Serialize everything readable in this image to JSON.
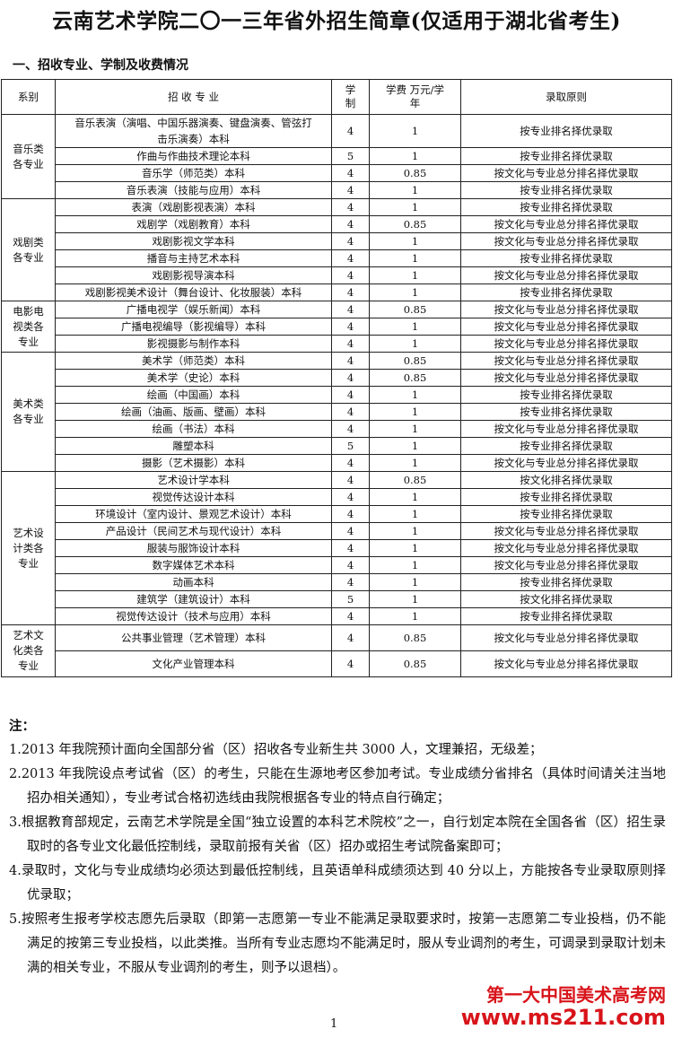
{
  "title": "云南艺术学院二〇一三年省外招生简章(仅适用于湖北省考生)",
  "section": "一、招收专业、学制及收费情况",
  "table": {
    "headers": [
      "系别",
      "招 收 专 业",
      "学制",
      "学费 万元/学年",
      "录取原则"
    ],
    "groups": [
      {
        "dept": "音乐类各专业",
        "rows": [
          [
            "音乐表演（演唱、中国乐器演奏、键盘演奏、管弦打击乐演奏）本科",
            "4",
            "1",
            "按专业排名择优录取"
          ],
          [
            "作曲与作曲技术理论本科",
            "5",
            "1",
            "按专业排名择优录取"
          ],
          [
            "音乐学（师范类）本科",
            "4",
            "0.85",
            "按文化与专业总分排名择优录取"
          ],
          [
            "音乐表演（技能与应用）本科",
            "4",
            "1",
            "按专业排名择优录取"
          ]
        ]
      },
      {
        "dept": "戏剧类各专业",
        "rows": [
          [
            "表演（戏剧影视表演）本科",
            "4",
            "1",
            "按专业排名择优录取"
          ],
          [
            "戏剧学（戏剧教育）本科",
            "4",
            "0.85",
            "按文化与专业总分排名择优录取"
          ],
          [
            "戏剧影视文学本科",
            "4",
            "1",
            "按文化与专业总分排名择优录取"
          ],
          [
            "播音与主持艺术本科",
            "4",
            "1",
            "按专业排名择优录取"
          ],
          [
            "戏剧影视导演本科",
            "4",
            "1",
            "按文化与专业总分排名择优录取"
          ],
          [
            "戏剧影视美术设计（舞台设计、化妆服装）本科",
            "4",
            "1",
            "按专业排名择优录取"
          ]
        ]
      },
      {
        "dept": "电影电视类各专业",
        "rows": [
          [
            "广播电视学（娱乐新闻）本科",
            "4",
            "0.85",
            "按文化与专业总分排名择优录取"
          ],
          [
            "广播电视编导（影视编导）本科",
            "4",
            "1",
            "按文化与专业总分排名择优录取"
          ],
          [
            "影视摄影与制作本科",
            "4",
            "1",
            "按文化与专业总分排名择优录取"
          ]
        ]
      },
      {
        "dept": "美术类各专业",
        "rows": [
          [
            "美术学（师范类）本科",
            "4",
            "0.85",
            "按文化与专业总分排名择优录取"
          ],
          [
            "美术学（史论）本科",
            "4",
            "0.85",
            "按文化与专业总分排名择优录取"
          ],
          [
            "绘画（中国画）本科",
            "4",
            "1",
            "按专业排名择优录取"
          ],
          [
            "绘画（油画、版画、壁画）本科",
            "4",
            "1",
            "按专业排名择优录取"
          ],
          [
            "绘画（书法）本科",
            "4",
            "1",
            "按文化与专业总分排名择优录取"
          ],
          [
            "雕塑本科",
            "5",
            "1",
            "按专业排名择优录取"
          ],
          [
            "摄影（艺术摄影）本科",
            "4",
            "1",
            "按文化与专业总分排名择优录取"
          ]
        ]
      },
      {
        "dept": "艺术设计类各专业",
        "rows": [
          [
            "艺术设计学本科",
            "4",
            "0.85",
            "按文化排名择优录取"
          ],
          [
            "视觉传达设计本科",
            "4",
            "1",
            "按专业排名择优录取"
          ],
          [
            "环境设计（室内设计、景观艺术设计）本科",
            "4",
            "1",
            "按专业排名择优录取"
          ],
          [
            "产品设计（民间艺术与现代设计）本科",
            "4",
            "1",
            "按文化与专业总分排名择优录取"
          ],
          [
            "服装与服饰设计本科",
            "4",
            "1",
            "按文化与专业总分排名择优录取"
          ],
          [
            "数字媒体艺术本科",
            "4",
            "1",
            "按文化与专业总分排名择优录取"
          ],
          [
            "动画本科",
            "4",
            "1",
            "按专业排名择优录取"
          ],
          [
            "建筑学（建筑设计）本科",
            "5",
            "1",
            "按文化排名择优录取"
          ],
          [
            "视觉传达设计（技术与应用）本科",
            "4",
            "1",
            "按专业排名择优录取"
          ]
        ]
      },
      {
        "dept": "艺术文化类各专业",
        "rows": [
          [
            "公共事业管理（艺术管理）本科",
            "4",
            "0.85",
            "按文化与专业总分排名择优录取"
          ],
          [
            "文化产业管理本科",
            "4",
            "0.85",
            "按文化与专业总分排名择优录取"
          ]
        ]
      }
    ]
  },
  "notes": {
    "heading": "注：",
    "items": [
      "1.2013 年我院预计面向全国部分省（区）招收各专业新生共 3000 人，文理兼招，无级差；",
      "2.2013 年我院设点考试省（区）的考生，只能在生源地考区参加考试。专业成绩分省排名（具体时间请关注当地招办相关通知），专业考试合格初选线由我院根据各专业的特点自行确定；",
      "3.根据教育部规定，云南艺术学院是全国“独立设置的本科艺术院校”之一，自行划定本院在全国各省（区）招生录取时的各专业文化最低控制线，录取前报有关省（区）招办或招生考试院备案即可；",
      "4.录取时，文化与专业成绩均必须达到最低控制线，且英语单科成绩须达到 40 分以上，方能按各专业录取原则择优录取；",
      "5.按照考生报考学校志愿先后录取（即第一志愿第一专业不能满足录取要求时，按第一志愿第二专业投档，仍不能满足的按第三专业投档，以此类推。当所有专业志愿均不能满足时，服从专业调剂的考生，可调录到录取计划未满的相关专业，不服从专业调剂的考生，则予以退档）。"
    ]
  },
  "watermark": {
    "name": "第一大中国美术高考网",
    "url": "www.ms211.com"
  },
  "page_number": "1"
}
